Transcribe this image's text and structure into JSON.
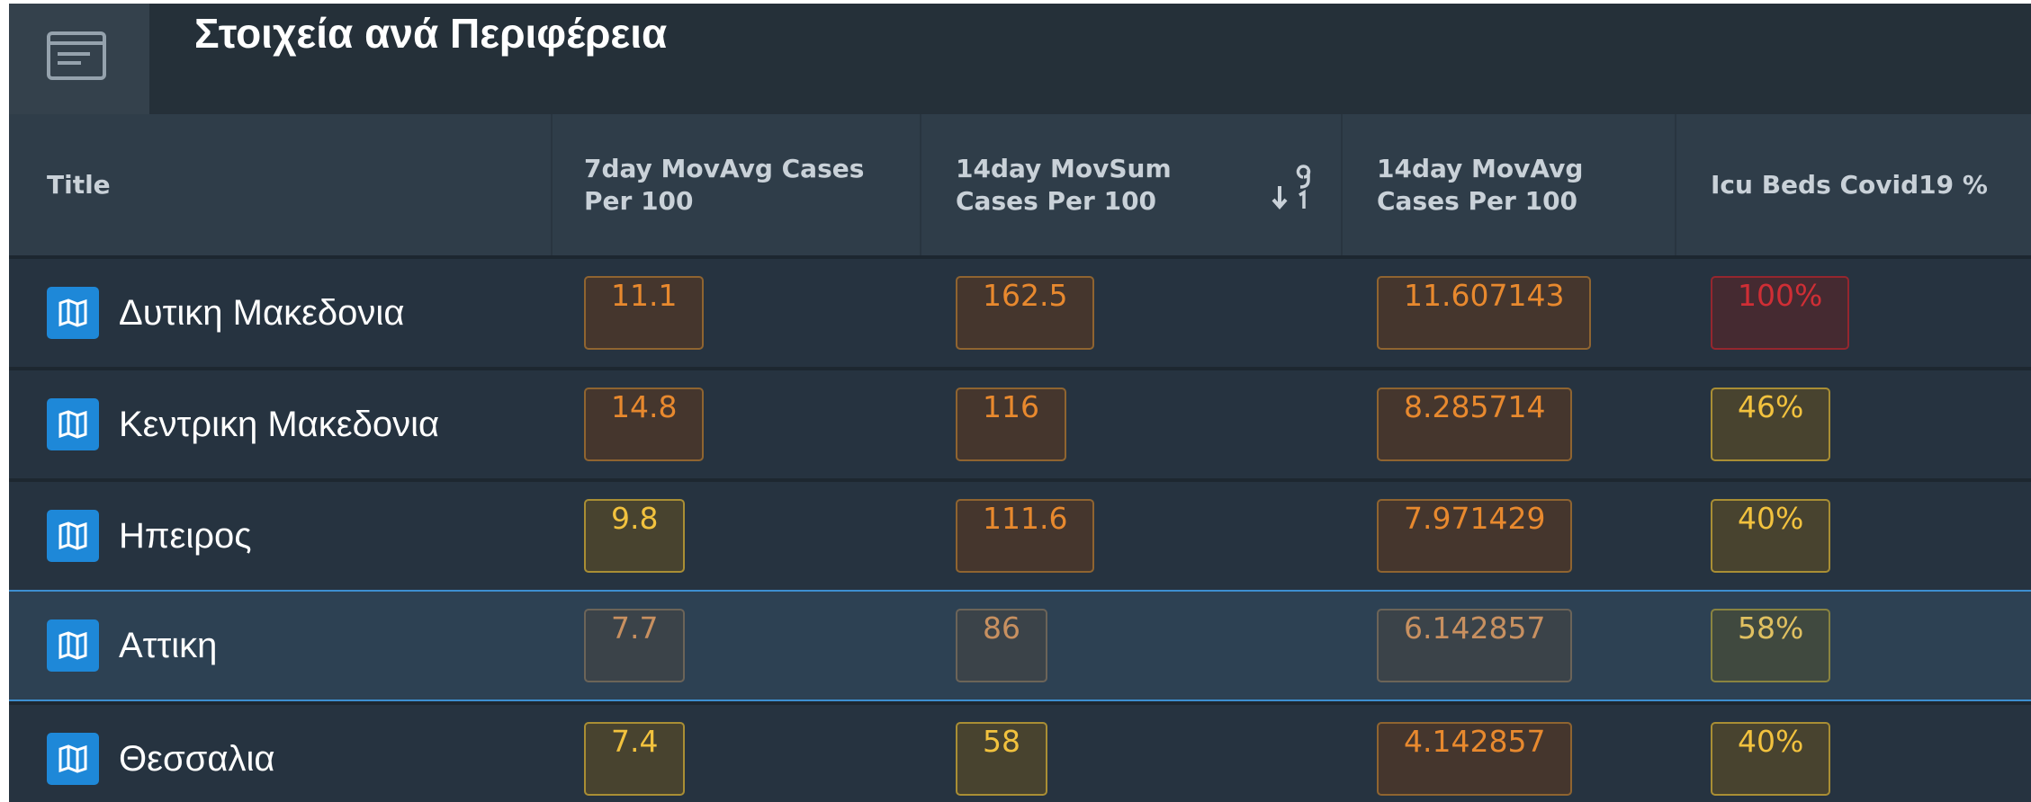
{
  "header": {
    "title": "Στοιχεία ανά Περιφέρεια"
  },
  "table": {
    "columns": [
      "Title",
      "7day MovAvg Cases Per 100",
      "14day MovSum Cases Per 100",
      "14day MovAvg Cases Per 100",
      "Icu Beds Covid19 %"
    ],
    "rows": [
      [
        "Δυτικη Μακεδονια",
        "11.1",
        "162.5",
        "11.607143",
        "100%"
      ],
      [
        "Κεντρικη Μακεδονια",
        "14.8",
        "116",
        "8.285714",
        "46%"
      ],
      [
        "Ηπειρος",
        "9.8",
        "111.6",
        "7.971429",
        "40%"
      ],
      [
        "Αττικη",
        "7.7",
        "86",
        "6.142857",
        "58%"
      ],
      [
        "Θεσσαλια",
        "7.4",
        "58",
        "4.142857",
        "40%"
      ]
    ]
  }
}
